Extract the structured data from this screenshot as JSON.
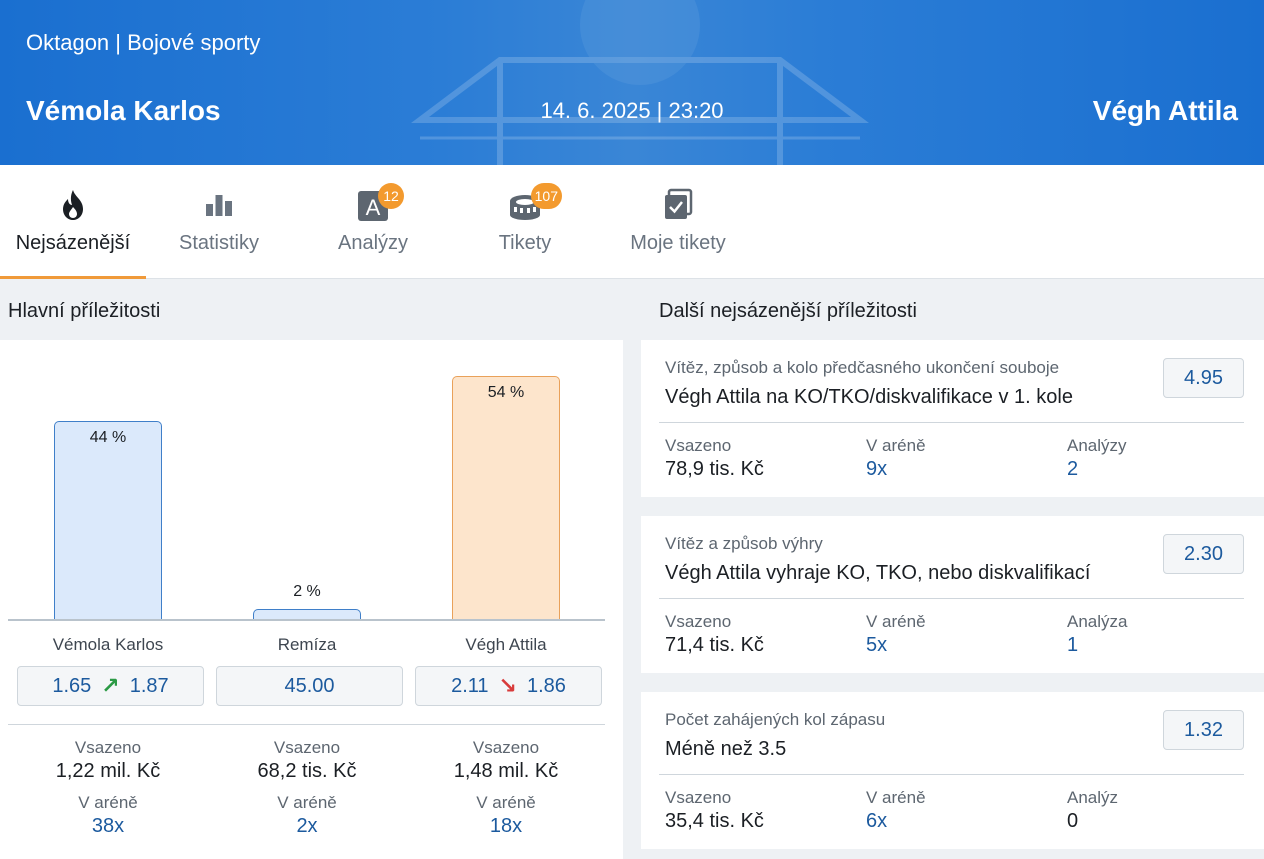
{
  "header": {
    "breadcrumb": "Oktagon | Bojové sporty",
    "home": "Vémola Karlos",
    "datetime": "14. 6. 2025 | 23:20",
    "away": "Végh Attila"
  },
  "tabs": [
    {
      "label": "Nejsázenější",
      "icon": "flame-icon",
      "active": true
    },
    {
      "label": "Statistiky",
      "icon": "bar-chart-icon"
    },
    {
      "label": "Analýzy",
      "icon": "analysis-icon",
      "badge": "12"
    },
    {
      "label": "Tikety",
      "icon": "stadium-icon",
      "badge": "107"
    },
    {
      "label": "Moje tikety",
      "icon": "my-tickets-icon"
    }
  ],
  "main": {
    "title": "Hlavní příležitosti",
    "outcomes": [
      {
        "name": "Vémola Karlos",
        "pct": 44,
        "pct_label": "44 %",
        "odds_old": "1.65",
        "odds_new": "1.87",
        "trend": "up",
        "staked_label": "Vsazeno",
        "staked": "1,22 mil. Kč",
        "arena_label": "V aréně",
        "arena": "38x"
      },
      {
        "name": "Remíza",
        "pct": 2,
        "pct_label": "2 %",
        "odds": "45.00",
        "staked_label": "Vsazeno",
        "staked": "68,2 tis. Kč",
        "arena_label": "V aréně",
        "arena": "2x"
      },
      {
        "name": "Végh Attila",
        "pct": 54,
        "pct_label": "54 %",
        "odds_old": "2.11",
        "odds_new": "1.86",
        "trend": "down",
        "staked_label": "Vsazeno",
        "staked": "1,48 mil. Kč",
        "arena_label": "V aréně",
        "arena": "18x"
      }
    ]
  },
  "side": {
    "title": "Další nejsázenější příležitosti",
    "cards": [
      {
        "market": "Vítěz, způsob a kolo předčasného ukončení souboje",
        "selection": "Végh Attila na KO/TKO/diskvalifikace v 1. kole",
        "odds": "4.95",
        "staked_label": "Vsazeno",
        "staked": "78,9 tis. Kč",
        "arena_label": "V aréně",
        "arena": "9x",
        "analyses_label": "Analýzy",
        "analyses": "2"
      },
      {
        "market": "Vítěz a způsob výhry",
        "selection": "Végh Attila vyhraje KO, TKO, nebo diskvalifikací",
        "odds": "2.30",
        "staked_label": "Vsazeno",
        "staked": "71,4 tis. Kč",
        "arena_label": "V aréně",
        "arena": "5x",
        "analyses_label": "Analýza",
        "analyses": "1"
      },
      {
        "market": "Počet zahájených kol zápasu",
        "selection": "Méně než 3.5",
        "odds": "1.32",
        "staked_label": "Vsazeno",
        "staked": "35,4 tis. Kč",
        "arena_label": "V aréně",
        "arena": "6x",
        "analyses_label": "Analýz",
        "analyses": "0"
      }
    ]
  },
  "colors": {
    "header_bg": "#1a6fd0",
    "accent_orange": "#f09a3a",
    "link_blue": "#1c5a9e",
    "bar_home_fill": "#dbe9fb",
    "bar_home_border": "#3f7fc9",
    "bar_away_fill": "#fde5cc",
    "bar_away_border": "#e9a15a",
    "trend_up": "#2b9a45",
    "trend_down": "#d83b3b"
  }
}
